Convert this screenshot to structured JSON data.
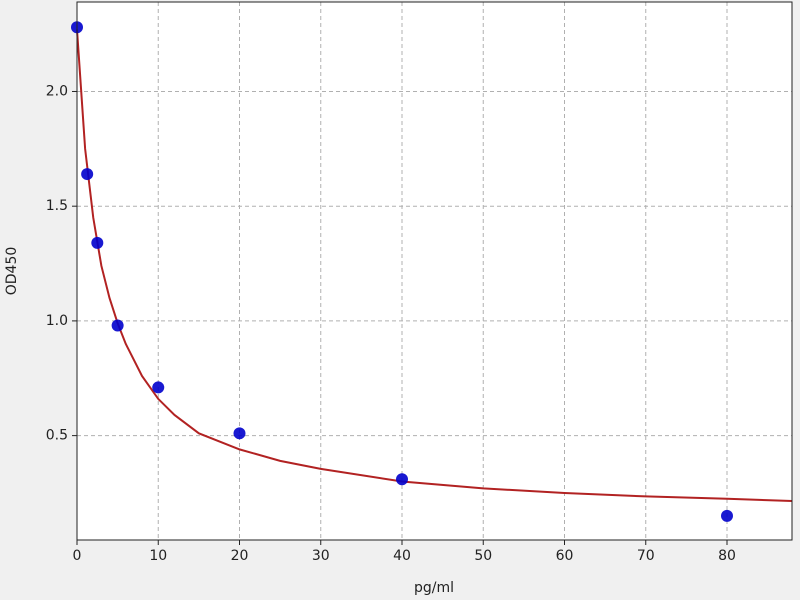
{
  "chart_data": {
    "type": "scatter",
    "xlabel": "pg/ml",
    "ylabel": "OD450",
    "points": {
      "color": "#0000cc",
      "x": [
        0,
        1.25,
        2.5,
        5,
        10,
        20,
        40,
        80
      ],
      "values": [
        2.28,
        1.64,
        1.34,
        0.98,
        0.71,
        0.51,
        0.31,
        0.15
      ]
    },
    "fit": {
      "color": "#b22222",
      "x": [
        0,
        1,
        2,
        3,
        4,
        5,
        6,
        8,
        10,
        12,
        15,
        20,
        25,
        30,
        40,
        50,
        60,
        70,
        80,
        88
      ],
      "values": [
        2.27,
        1.75,
        1.45,
        1.24,
        1.1,
        0.99,
        0.9,
        0.76,
        0.66,
        0.59,
        0.51,
        0.44,
        0.39,
        0.355,
        0.3,
        0.27,
        0.25,
        0.235,
        0.225,
        0.215
      ]
    },
    "xlim": [
      0,
      88
    ],
    "ylim": [
      0.045,
      2.39
    ],
    "xticks": [
      0,
      10,
      20,
      30,
      40,
      50,
      60,
      70,
      80
    ],
    "yticks": [
      0.5,
      {
        "value": 1,
        "label": "1.0"
      },
      1.5,
      {
        "value": 2,
        "label": "2.0"
      }
    ],
    "grid": true
  }
}
